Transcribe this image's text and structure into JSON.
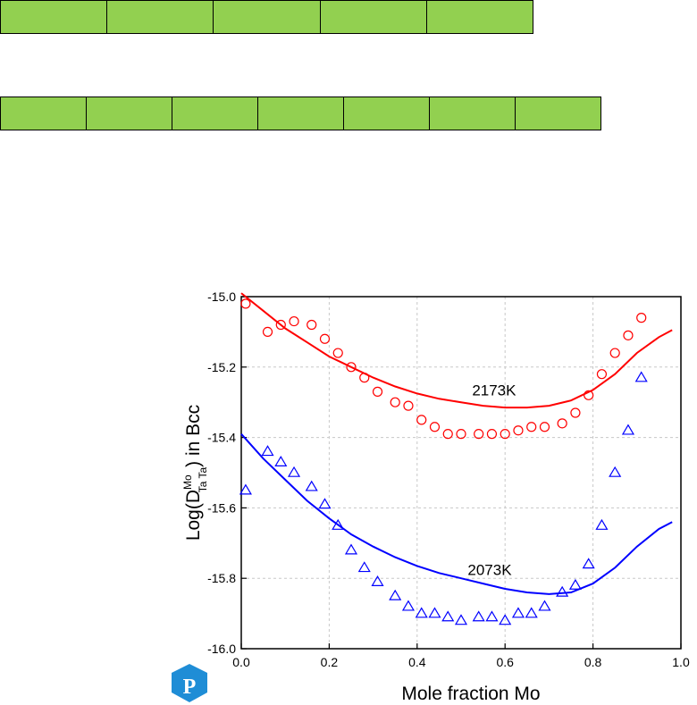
{
  "colors": {
    "cell_fill": "#92d050",
    "red": "#ff0000",
    "blue": "#0000ff",
    "logo": "#1f8dd6"
  },
  "top_bars": [
    {
      "cells": 5
    },
    {
      "cells": 7
    }
  ],
  "chart_data": {
    "type": "scatter",
    "xlabel": "Mole fraction Mo",
    "ylabel": {
      "prefix": "Log(D",
      "sup": "Mo",
      "sub": "Ta Ta",
      "suffix": ") in Bcc"
    },
    "xlim": [
      0.0,
      1.0
    ],
    "ylim": [
      -16.0,
      -15.0
    ],
    "xticks": [
      "0.0",
      "0.2",
      "0.4",
      "0.6",
      "0.8",
      "1.0"
    ],
    "yticks": [
      "-15.0",
      "-15.2",
      "-15.4",
      "-15.6",
      "-15.8",
      "-16.0"
    ],
    "grid": true,
    "series": [
      {
        "name": "2173K",
        "color": "red",
        "curve": [
          [
            0.0,
            -14.99
          ],
          [
            0.05,
            -15.04
          ],
          [
            0.1,
            -15.09
          ],
          [
            0.15,
            -15.13
          ],
          [
            0.2,
            -15.17
          ],
          [
            0.25,
            -15.2
          ],
          [
            0.3,
            -15.23
          ],
          [
            0.35,
            -15.255
          ],
          [
            0.4,
            -15.275
          ],
          [
            0.45,
            -15.29
          ],
          [
            0.5,
            -15.3
          ],
          [
            0.55,
            -15.31
          ],
          [
            0.6,
            -15.315
          ],
          [
            0.65,
            -15.315
          ],
          [
            0.7,
            -15.31
          ],
          [
            0.75,
            -15.295
          ],
          [
            0.8,
            -15.265
          ],
          [
            0.85,
            -15.22
          ],
          [
            0.9,
            -15.16
          ],
          [
            0.95,
            -15.115
          ],
          [
            0.98,
            -15.095
          ]
        ],
        "points": [
          [
            0.01,
            -15.02
          ],
          [
            0.06,
            -15.1
          ],
          [
            0.09,
            -15.08
          ],
          [
            0.12,
            -15.07
          ],
          [
            0.16,
            -15.08
          ],
          [
            0.19,
            -15.12
          ],
          [
            0.22,
            -15.16
          ],
          [
            0.25,
            -15.2
          ],
          [
            0.28,
            -15.23
          ],
          [
            0.31,
            -15.27
          ],
          [
            0.35,
            -15.3
          ],
          [
            0.38,
            -15.31
          ],
          [
            0.41,
            -15.35
          ],
          [
            0.44,
            -15.37
          ],
          [
            0.47,
            -15.39
          ],
          [
            0.5,
            -15.39
          ],
          [
            0.54,
            -15.39
          ],
          [
            0.57,
            -15.39
          ],
          [
            0.6,
            -15.39
          ],
          [
            0.63,
            -15.38
          ],
          [
            0.66,
            -15.37
          ],
          [
            0.69,
            -15.37
          ],
          [
            0.73,
            -15.36
          ],
          [
            0.76,
            -15.33
          ],
          [
            0.79,
            -15.28
          ],
          [
            0.82,
            -15.22
          ],
          [
            0.85,
            -15.16
          ],
          [
            0.88,
            -15.11
          ],
          [
            0.91,
            -15.06
          ]
        ]
      },
      {
        "name": "2073K",
        "color": "blue",
        "curve": [
          [
            0.0,
            -15.39
          ],
          [
            0.05,
            -15.46
          ],
          [
            0.1,
            -15.52
          ],
          [
            0.15,
            -15.58
          ],
          [
            0.2,
            -15.63
          ],
          [
            0.25,
            -15.675
          ],
          [
            0.3,
            -15.71
          ],
          [
            0.35,
            -15.74
          ],
          [
            0.4,
            -15.765
          ],
          [
            0.45,
            -15.785
          ],
          [
            0.5,
            -15.8
          ],
          [
            0.55,
            -15.815
          ],
          [
            0.6,
            -15.83
          ],
          [
            0.65,
            -15.84
          ],
          [
            0.7,
            -15.845
          ],
          [
            0.75,
            -15.84
          ],
          [
            0.8,
            -15.815
          ],
          [
            0.85,
            -15.77
          ],
          [
            0.9,
            -15.71
          ],
          [
            0.95,
            -15.66
          ],
          [
            0.98,
            -15.64
          ]
        ],
        "points": [
          [
            0.01,
            -15.55
          ],
          [
            0.06,
            -15.44
          ],
          [
            0.09,
            -15.47
          ],
          [
            0.12,
            -15.5
          ],
          [
            0.16,
            -15.54
          ],
          [
            0.19,
            -15.59
          ],
          [
            0.22,
            -15.65
          ],
          [
            0.25,
            -15.72
          ],
          [
            0.28,
            -15.77
          ],
          [
            0.31,
            -15.81
          ],
          [
            0.35,
            -15.85
          ],
          [
            0.38,
            -15.88
          ],
          [
            0.41,
            -15.9
          ],
          [
            0.44,
            -15.9
          ],
          [
            0.47,
            -15.91
          ],
          [
            0.5,
            -15.92
          ],
          [
            0.54,
            -15.91
          ],
          [
            0.57,
            -15.91
          ],
          [
            0.6,
            -15.92
          ],
          [
            0.63,
            -15.9
          ],
          [
            0.66,
            -15.9
          ],
          [
            0.69,
            -15.88
          ],
          [
            0.73,
            -15.84
          ],
          [
            0.76,
            -15.82
          ],
          [
            0.79,
            -15.76
          ],
          [
            0.82,
            -15.65
          ],
          [
            0.85,
            -15.5
          ],
          [
            0.88,
            -15.38
          ],
          [
            0.91,
            -15.23
          ]
        ]
      }
    ]
  }
}
